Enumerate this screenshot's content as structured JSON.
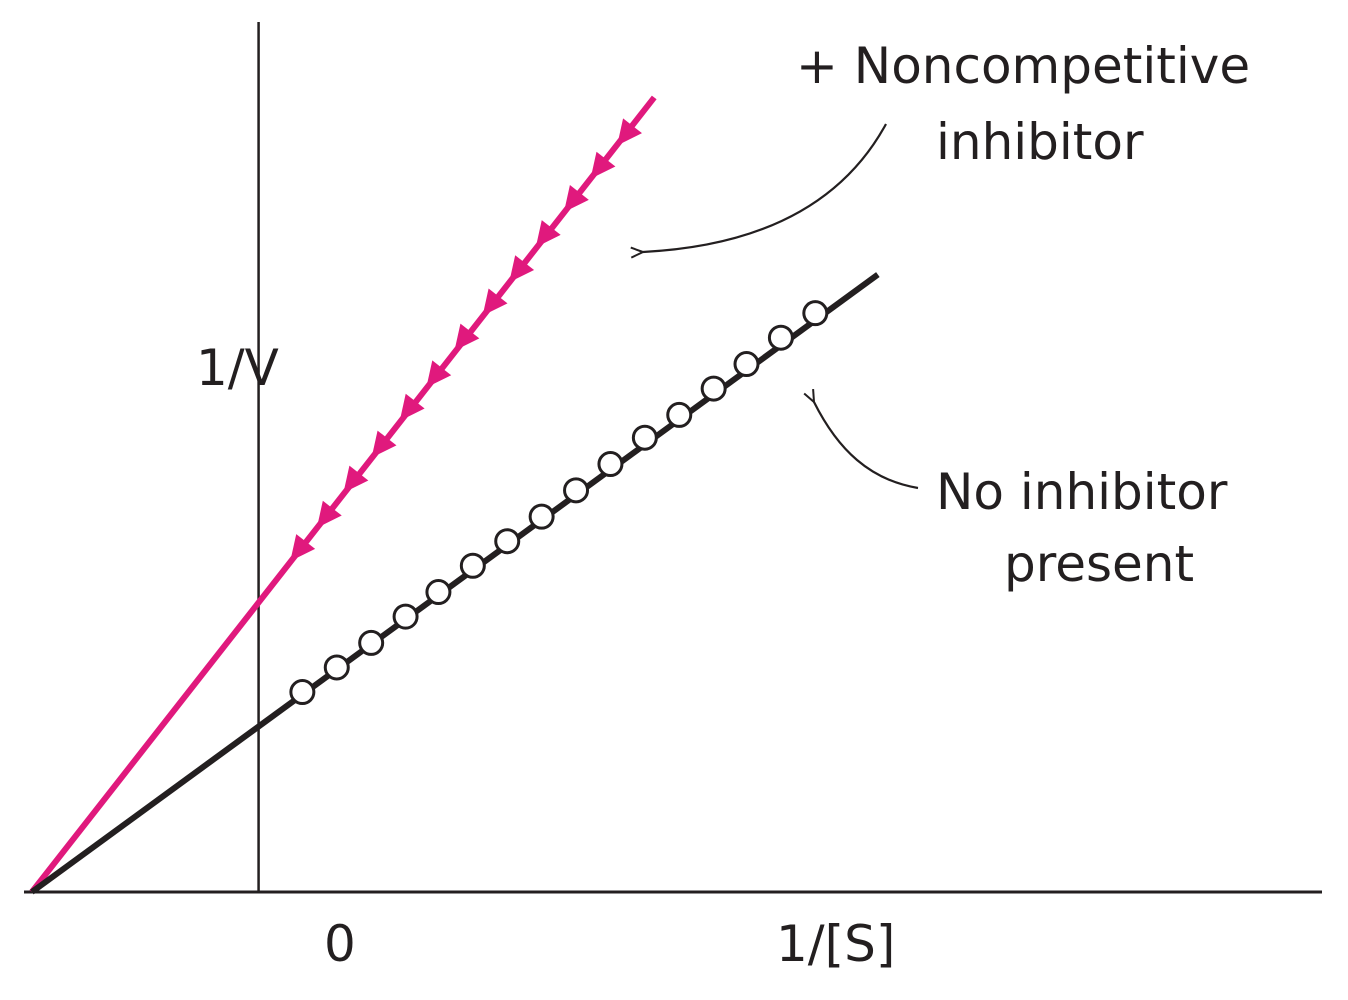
{
  "chart_data": {
    "type": "line",
    "xlabel": "1/[S]",
    "ylabel": "1/V",
    "xtick_labels": [
      "0"
    ],
    "xlim": [
      -1.5,
      6.8
    ],
    "ylim": [
      0,
      4.96
    ],
    "grid": false,
    "series": [
      {
        "name": "+ Noncompetitive inhibitor",
        "color": "#e0197d",
        "marker": "filled-triangle",
        "line_x": [
          -1.45,
          2.53
        ],
        "line_y": [
          0,
          4.53
        ],
        "x": [
          0.25,
          0.42,
          0.59,
          0.77,
          0.95,
          1.12,
          1.3,
          1.48,
          1.65,
          1.82,
          2.0,
          2.17,
          2.34
        ],
        "y": [
          1.94,
          2.13,
          2.33,
          2.53,
          2.74,
          2.93,
          3.14,
          3.34,
          3.53,
          3.73,
          3.93,
          4.12,
          4.31
        ]
      },
      {
        "name": "No inhibitor present",
        "color": "#231f20",
        "marker": "open-circle",
        "line_x": [
          -1.45,
          3.96
        ],
        "line_y": [
          0,
          3.52
        ],
        "x": [
          0.28,
          0.5,
          0.72,
          0.94,
          1.15,
          1.37,
          1.59,
          1.81,
          2.03,
          2.25,
          2.47,
          2.69,
          2.91,
          3.12,
          3.34,
          3.56
        ],
        "y": [
          1.14,
          1.28,
          1.42,
          1.57,
          1.71,
          1.86,
          2.0,
          2.14,
          2.29,
          2.44,
          2.59,
          2.72,
          2.87,
          3.01,
          3.16,
          3.3
        ]
      }
    ],
    "annotations": [
      {
        "lines": [
          "+ Noncompetitive",
          "inhibitor"
        ],
        "points_to": "+ Noncompetitive inhibitor"
      },
      {
        "lines": [
          "No inhibitor",
          "present"
        ],
        "points_to": "No inhibitor present"
      }
    ]
  }
}
